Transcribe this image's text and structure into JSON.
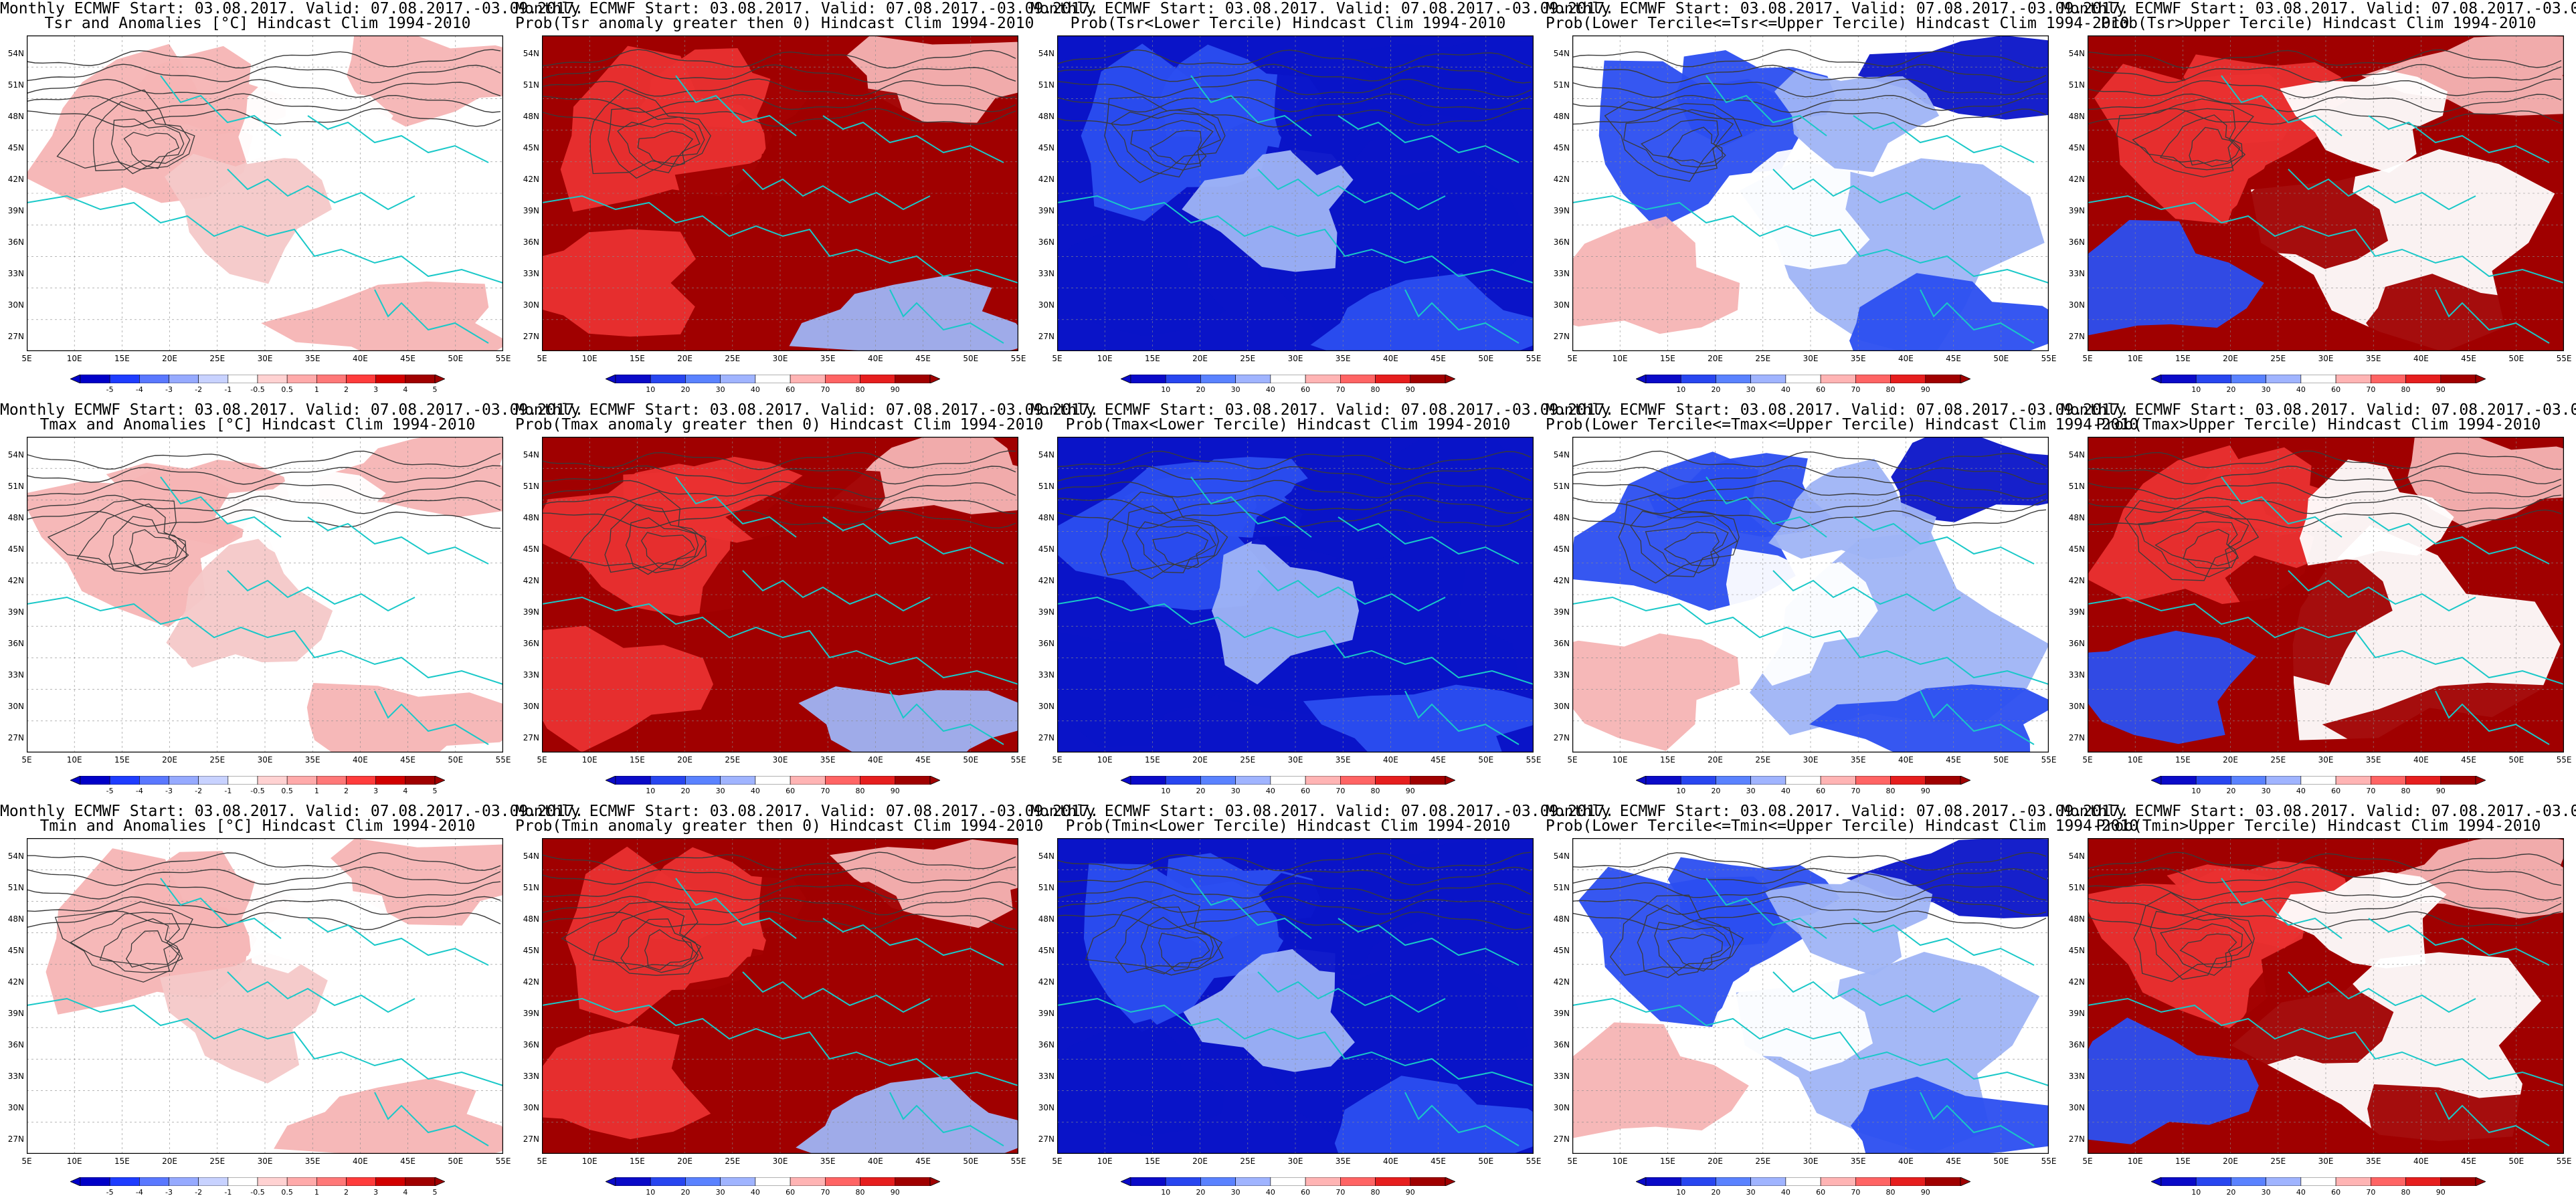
{
  "line1": "Monthly ECMWF Start: 03.08.2017. Valid: 07.08.2017.-03.09.2017.",
  "lat_labels": [
    "54N",
    "51N",
    "48N",
    "45N",
    "42N",
    "39N",
    "36N",
    "33N",
    "30N",
    "27N"
  ],
  "lon_labels": [
    "5E",
    "10E",
    "15E",
    "20E",
    "25E",
    "30E",
    "35E",
    "40E",
    "45E",
    "50E",
    "55E"
  ],
  "anom_ticks": [
    "-5",
    "-4",
    "-3",
    "-2",
    "-1",
    "-0.5",
    "0.5",
    "1",
    "2",
    "3",
    "4",
    "5"
  ],
  "prob_ticks": [
    "10",
    "20",
    "30",
    "40",
    "60",
    "70",
    "80",
    "90"
  ],
  "colors": {
    "deep_blue": "#0a14c8",
    "mid_blue": "#2b4ef0",
    "light_blue": "#9fb4f5",
    "white": "#ffffff",
    "light_red": "#f6b4b4",
    "mid_red": "#ea3030",
    "deep_red": "#a00000",
    "contour": "#3a3a3a",
    "coast": "#19c8c8"
  },
  "panels": [
    {
      "row": 0,
      "col": 0,
      "line2": "Tsr and Anomalies [°C] Hindcast Clim 1994-2010",
      "kind": "anom",
      "scheme": "anom"
    },
    {
      "row": 0,
      "col": 1,
      "line2": "Prob(Tsr anomaly greater then 0) Hindcast Clim 1994-2010",
      "kind": "prob",
      "scheme": "warm"
    },
    {
      "row": 0,
      "col": 2,
      "line2": "Prob(Tsr<Lower Tercile) Hindcast Clim 1994-2010",
      "kind": "prob",
      "scheme": "cold"
    },
    {
      "row": 0,
      "col": 3,
      "line2": "Prob(Lower Tercile<=Tsr<=Upper Tercile) Hindcast Clim 1994-2010",
      "kind": "prob",
      "scheme": "mid"
    },
    {
      "row": 0,
      "col": 4,
      "line2": "Prob(Tsr>Upper Tercile) Hindcast Clim 1994-2010",
      "kind": "prob",
      "scheme": "upper"
    },
    {
      "row": 1,
      "col": 0,
      "line2": "Tmax and Anomalies [°C] Hindcast Clim 1994-2010",
      "kind": "anom",
      "scheme": "anom"
    },
    {
      "row": 1,
      "col": 1,
      "line2": "Prob(Tmax anomaly greater then 0) Hindcast Clim 1994-2010",
      "kind": "prob",
      "scheme": "warm"
    },
    {
      "row": 1,
      "col": 2,
      "line2": "Prob(Tmax<Lower Tercile) Hindcast Clim 1994-2010",
      "kind": "prob",
      "scheme": "cold"
    },
    {
      "row": 1,
      "col": 3,
      "line2": "Prob(Lower Tercile<=Tmax<=Upper Tercile) Hindcast Clim 1994-2010",
      "kind": "prob",
      "scheme": "mid"
    },
    {
      "row": 1,
      "col": 4,
      "line2": "Prob(Tmax>Upper Tercile) Hindcast Clim 1994-2010",
      "kind": "prob",
      "scheme": "upper"
    },
    {
      "row": 2,
      "col": 0,
      "line2": "Tmin and Anomalies [°C] Hindcast Clim 1994-2010",
      "kind": "anom",
      "scheme": "anom"
    },
    {
      "row": 2,
      "col": 1,
      "line2": "Prob(Tmin anomaly greater then 0) Hindcast Clim 1994-2010",
      "kind": "prob",
      "scheme": "warm"
    },
    {
      "row": 2,
      "col": 2,
      "line2": "Prob(Tmin<Lower Tercile) Hindcast Clim 1994-2010",
      "kind": "prob",
      "scheme": "cold"
    },
    {
      "row": 2,
      "col": 3,
      "line2": "Prob(Lower Tercile<=Tmin<=Upper Tercile) Hindcast Clim 1994-2010",
      "kind": "prob",
      "scheme": "mid"
    },
    {
      "row": 2,
      "col": 4,
      "line2": "Prob(Tmin>Upper Tercile) Hindcast Clim 1994-2010",
      "kind": "prob",
      "scheme": "upper"
    }
  ]
}
